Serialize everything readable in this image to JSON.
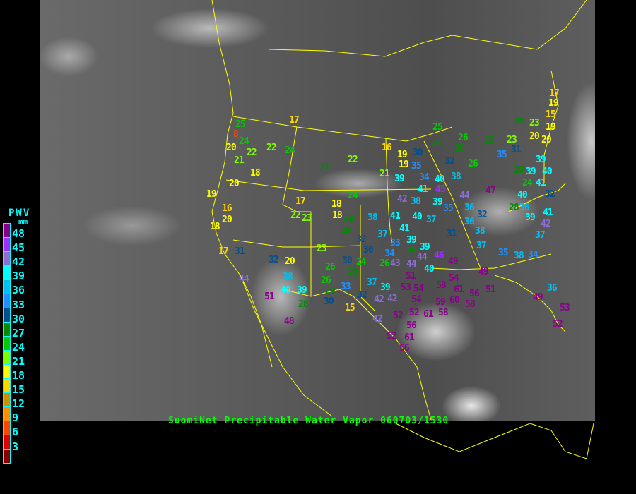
{
  "title": "SuomiNet Precipitable Water Vapor 060703/1530",
  "legend": {
    "title": "PWV",
    "unit": "mm",
    "labels": [
      "48",
      "45",
      "42",
      "39",
      "36",
      "33",
      "30",
      "27",
      "24",
      "21",
      "18",
      "15",
      "12",
      "9",
      "6",
      "3"
    ],
    "colors": [
      "#8b008b",
      "#9b30ff",
      "#8a6fd6",
      "#00ffff",
      "#00c0f0",
      "#1e90ff",
      "#00508f",
      "#008b00",
      "#00cc00",
      "#80ff00",
      "#ffff00",
      "#ffd700",
      "#cd9000",
      "#ff8c00",
      "#ff4500",
      "#e00000",
      "#8b0000"
    ]
  },
  "border_color": "#ffff00",
  "stations": [
    25,
    8,
    24,
    20,
    22,
    22,
    24,
    21,
    17,
    18,
    20,
    19,
    16,
    20,
    18,
    17,
    31,
    44,
    32,
    20,
    38,
    40,
    39,
    51,
    28,
    48,
    17,
    22,
    23,
    16,
    19,
    22,
    27,
    21,
    24,
    18,
    18,
    28,
    29,
    23,
    26,
    26,
    30,
    29,
    24,
    33,
    29,
    30,
    15,
    38,
    41,
    40,
    37,
    35,
    36,
    32,
    41,
    38,
    31,
    37,
    32,
    37,
    33,
    39,
    29,
    30,
    34,
    26,
    39,
    44,
    44,
    40,
    46,
    51,
    43,
    37,
    39,
    42,
    32,
    42,
    53,
    54,
    54,
    52,
    58,
    54,
    49,
    49,
    59,
    60,
    61,
    56,
    58,
    51,
    52,
    56,
    61,
    58,
    42,
    52,
    61,
    56,
    25,
    28,
    28,
    26,
    29,
    23,
    28,
    23,
    19,
    15,
    19,
    17,
    20,
    20,
    19,
    30,
    32,
    26,
    35,
    31,
    39,
    35,
    39,
    34,
    40,
    38,
    28,
    39,
    40,
    24,
    41,
    41,
    45,
    38,
    42,
    47,
    44,
    39,
    36,
    40,
    36,
    28,
    32,
    39,
    41,
    42,
    37,
    35,
    38,
    34,
    36,
    49,
    53,
    52
  ]
}
